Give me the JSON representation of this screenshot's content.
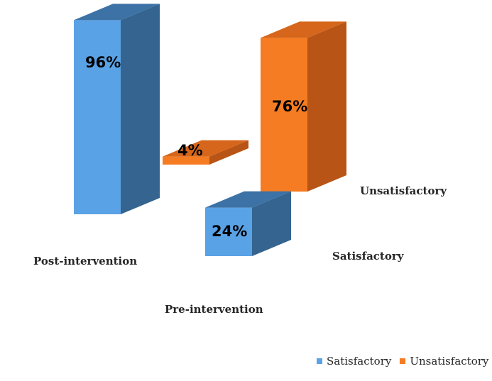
{
  "chart_data": {
    "type": "bar",
    "three_d": true,
    "depth_categories": [
      "Pre-intervention",
      "Post-intervention"
    ],
    "x_categories": [
      "Satisfactory",
      "Unsatisfactory"
    ],
    "series": [
      {
        "name": "Pre-intervention",
        "values": [
          24,
          76
        ],
        "labels": [
          "24%",
          "76%"
        ]
      },
      {
        "name": "Post-intervention",
        "values": [
          96,
          4
        ],
        "labels": [
          "96%",
          "4%"
        ]
      }
    ],
    "unit": "%",
    "title": "",
    "xlabel": "",
    "ylabel": "",
    "grid": false,
    "legend": {
      "position": "bottom-right",
      "items": [
        {
          "label": "Satisfactory",
          "color": "#5aa2e6"
        },
        {
          "label": "Unsatisfactory",
          "color": "#f57c22"
        }
      ]
    },
    "colors": {
      "Satisfactory": {
        "front": "#5aa2e6",
        "side": "#34648f",
        "top": "#3c72a6"
      },
      "Unsatisfactory": {
        "front": "#f57c22",
        "side": "#b85416",
        "top": "#d6661b"
      }
    }
  }
}
